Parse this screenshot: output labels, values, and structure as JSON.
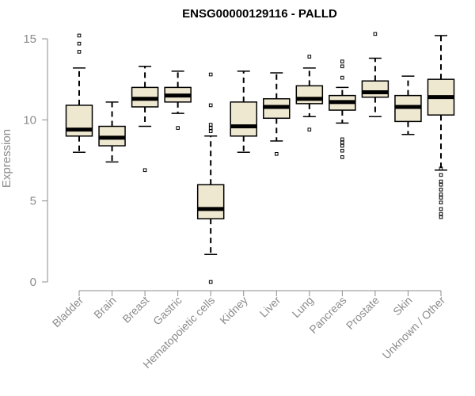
{
  "chart_data": {
    "type": "boxplot",
    "title": "ENSG00000129116 - PALLD",
    "ylabel": "Expression",
    "xlabel": "",
    "ylim": [
      0,
      15.5
    ],
    "yticks": [
      0,
      5,
      10,
      15
    ],
    "grid": false,
    "legend": "none",
    "box_fill": "#efe8d1",
    "box_stroke": "#000000",
    "median_color": "#000000",
    "axis_color": "#8c8c8c",
    "categories": [
      "Bladder",
      "Brain",
      "Breast",
      "Gastric",
      "Hematopoietic cells",
      "Kidney",
      "Liver",
      "Lung",
      "Pancreas",
      "Prostate",
      "Skin",
      "Unknown / Other"
    ],
    "boxes": [
      {
        "name": "Bladder",
        "whisker_low": 8.0,
        "q1": 9.0,
        "median": 9.4,
        "q3": 10.9,
        "whisker_high": 13.2,
        "outliers": [
          14.2,
          14.7,
          15.2
        ]
      },
      {
        "name": "Brain",
        "whisker_low": 7.4,
        "q1": 8.4,
        "median": 8.9,
        "q3": 9.6,
        "whisker_high": 11.1,
        "outliers": []
      },
      {
        "name": "Breast",
        "whisker_low": 9.6,
        "q1": 10.8,
        "median": 11.3,
        "q3": 12.0,
        "whisker_high": 13.3,
        "outliers": [
          6.9
        ]
      },
      {
        "name": "Gastric",
        "whisker_low": 10.4,
        "q1": 11.1,
        "median": 11.5,
        "q3": 12.0,
        "whisker_high": 13.0,
        "outliers": [
          9.5
        ]
      },
      {
        "name": "Hematopoietic cells",
        "whisker_low": 1.7,
        "q1": 3.9,
        "median": 4.5,
        "q3": 6.0,
        "whisker_high": 9.0,
        "outliers": [
          0.0,
          9.3,
          9.5,
          9.7,
          10.9,
          12.8
        ]
      },
      {
        "name": "Kidney",
        "whisker_low": 8.0,
        "q1": 9.0,
        "median": 9.6,
        "q3": 11.1,
        "whisker_high": 13.0,
        "outliers": []
      },
      {
        "name": "Liver",
        "whisker_low": 8.7,
        "q1": 10.1,
        "median": 10.8,
        "q3": 11.3,
        "whisker_high": 12.9,
        "outliers": [
          7.9
        ]
      },
      {
        "name": "Lung",
        "whisker_low": 10.2,
        "q1": 11.0,
        "median": 11.3,
        "q3": 12.1,
        "whisker_high": 13.2,
        "outliers": [
          9.4,
          13.9
        ]
      },
      {
        "name": "Pancreas",
        "whisker_low": 9.8,
        "q1": 10.6,
        "median": 11.1,
        "q3": 11.5,
        "whisker_high": 12.0,
        "outliers": [
          7.7,
          8.1,
          8.4,
          8.6,
          8.8,
          12.6,
          13.3,
          13.6
        ]
      },
      {
        "name": "Prostate",
        "whisker_low": 10.2,
        "q1": 11.4,
        "median": 11.7,
        "q3": 12.4,
        "whisker_high": 13.8,
        "outliers": [
          15.3
        ]
      },
      {
        "name": "Skin",
        "whisker_low": 9.1,
        "q1": 9.9,
        "median": 10.8,
        "q3": 11.5,
        "whisker_high": 12.7,
        "outliers": []
      },
      {
        "name": "Unknown / Other",
        "whisker_low": 6.9,
        "q1": 10.3,
        "median": 11.4,
        "q3": 12.5,
        "whisker_high": 15.2,
        "outliers": [
          4.0,
          4.2,
          4.5,
          4.9,
          5.2,
          5.4,
          5.7,
          6.0,
          6.2,
          6.6,
          7.0
        ]
      }
    ]
  }
}
